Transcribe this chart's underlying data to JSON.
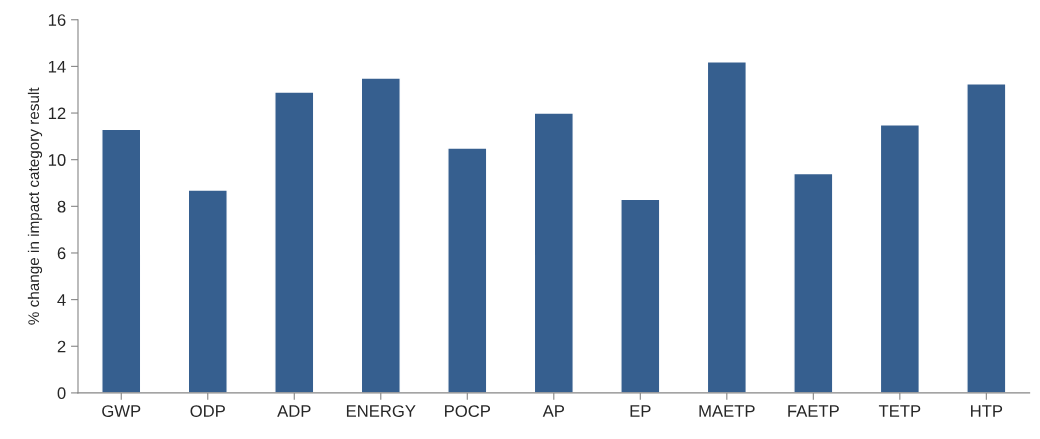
{
  "chart_data": {
    "type": "bar",
    "ylabel": "% change in impact category result",
    "categories": [
      "GWP",
      "ODP",
      "ADP",
      "ENERGY",
      "POCP",
      "AP",
      "EP",
      "MAETP",
      "FAETP",
      "TETP",
      "HTP"
    ],
    "values": [
      11.3,
      8.7,
      12.9,
      13.5,
      10.5,
      12.0,
      8.3,
      14.2,
      9.4,
      11.5,
      13.25
    ],
    "color": "#365f8f",
    "ylim": [
      0,
      16
    ],
    "yticks": [
      0,
      2,
      4,
      6,
      8,
      10,
      12,
      14,
      16
    ],
    "grid": false,
    "legend": false
  }
}
